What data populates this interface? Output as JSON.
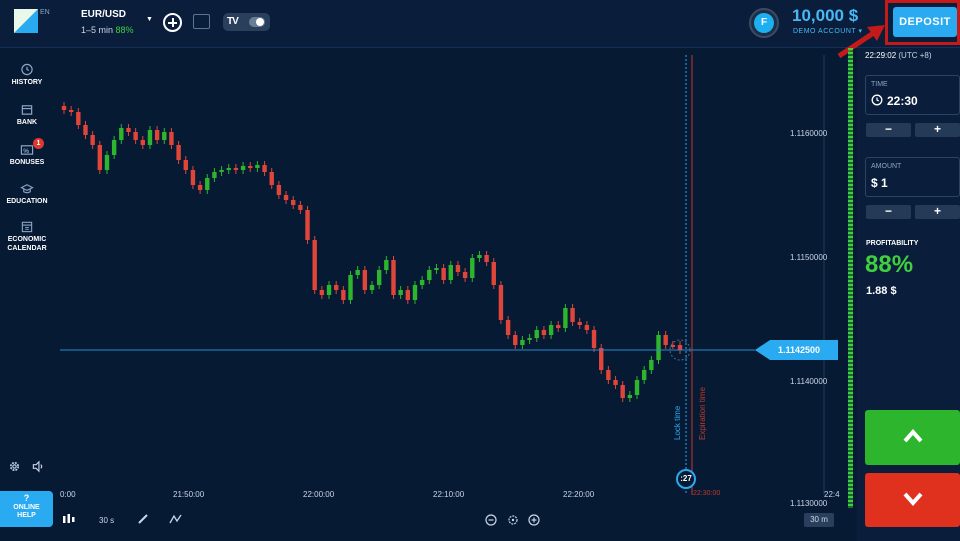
{
  "brand": {
    "lang": "EN"
  },
  "asset": {
    "name": "EUR/USD",
    "timeframe": "1–5 min",
    "payout": "88%"
  },
  "account": {
    "avatar_letter": "F",
    "balance": "10,000 $",
    "type": "DEMO ACCOUNT"
  },
  "deposit": {
    "label": "DEPOSIT"
  },
  "sidebar": {
    "items": [
      {
        "label": "HISTORY"
      },
      {
        "label": "BANK"
      },
      {
        "label": "BONUSES",
        "badge": "1"
      },
      {
        "label": "EDUCATION"
      },
      {
        "label": "ECONOMIC",
        "label2": "CALENDAR"
      }
    ],
    "help": {
      "line1": "?",
      "line2": "ONLINE",
      "line3": "HELP"
    }
  },
  "panel": {
    "clock": "22:29:02",
    "tz": "(UTC +8)",
    "time": {
      "label": "TIME",
      "value": "22:30",
      "minus": "−",
      "plus": "+"
    },
    "amount": {
      "label": "AMOUNT",
      "value": "$ 1",
      "minus": "−",
      "plus": "+"
    },
    "profitability": {
      "label": "PROFITABILITY",
      "percent": "88%",
      "amount": "1.88 $"
    }
  },
  "chart": {
    "price_ticks": [
      "1.1160000",
      "1.1150000",
      "1.1140000",
      "1.1130000"
    ],
    "time_ticks": [
      "0:00",
      "21:50:00",
      "22:00:00",
      "22:10:00",
      "22:20:00",
      "22:4"
    ],
    "current_price": "1.1142500",
    "lock_label": "Lock time",
    "expiration_label": "Expiration time",
    "countdown": ":27",
    "expiry_time": "22:30:00",
    "zoom": "30 m",
    "interval": "30 s"
  },
  "colors": {
    "up": "#2db52d",
    "down": "#e0453a",
    "accent": "#2aaaf0",
    "background": "#071a33"
  }
}
